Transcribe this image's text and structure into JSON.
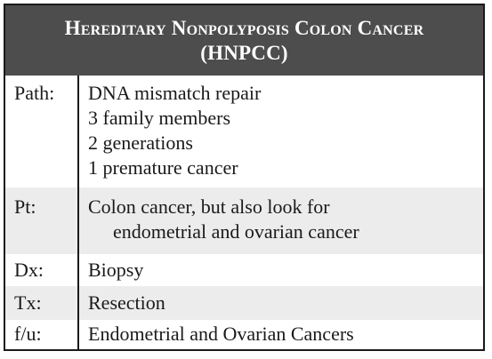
{
  "header": {
    "title_line1": "Hereditary Nonpolyposis Colon Cancer",
    "title_line2": "(HNPCC)"
  },
  "rows": [
    {
      "label": "Path:",
      "lines": [
        "DNA mismatch repair",
        "3 family members",
        "2 generations",
        "1 premature cancer"
      ]
    },
    {
      "label": "Pt:",
      "lines": [
        "Colon cancer, but also look for",
        "endometrial and ovarian cancer"
      ]
    },
    {
      "label": "Dx:",
      "lines": [
        "Biopsy"
      ]
    },
    {
      "label": "Tx:",
      "lines": [
        "Resection"
      ]
    },
    {
      "label": "f/u:",
      "lines": [
        "Endometrial and Ovarian Cancers"
      ]
    }
  ]
}
